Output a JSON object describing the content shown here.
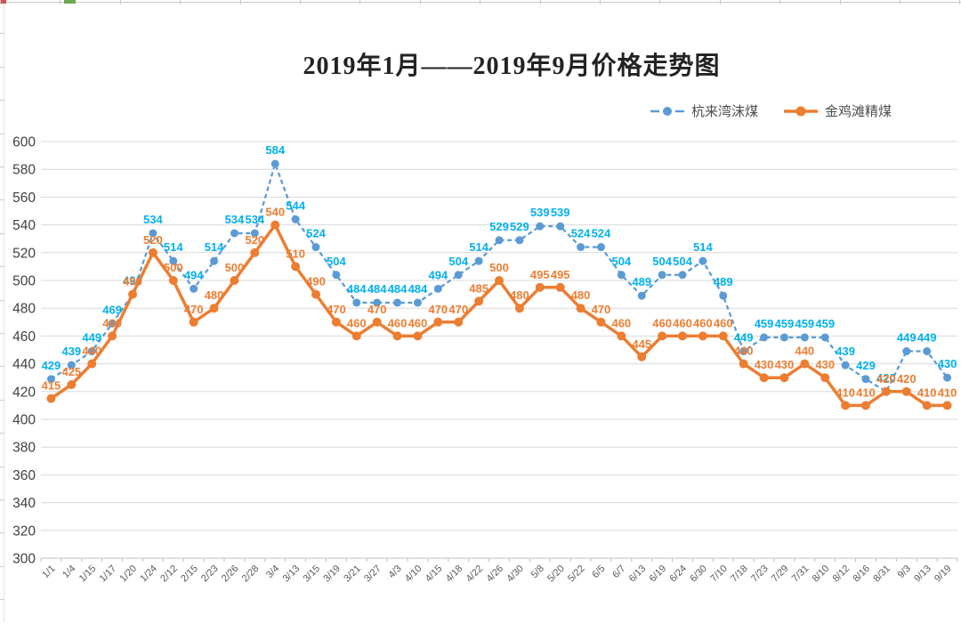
{
  "chart_data": {
    "type": "line",
    "title": "2019年1月——2019年9月价格走势图",
    "categories": [
      "1/1",
      "1/4",
      "1/15",
      "1/17",
      "1/20",
      "1/24",
      "2/12",
      "2/15",
      "2/23",
      "2/26",
      "2/28",
      "3/4",
      "3/13",
      "3/15",
      "3/19",
      "3/21",
      "3/27",
      "4/3",
      "4/10",
      "4/15",
      "4/18",
      "4/22",
      "4/26",
      "4/30",
      "5/8",
      "5/20",
      "5/22",
      "6/5",
      "6/7",
      "6/13",
      "6/19",
      "6/24",
      "6/30",
      "7/10",
      "7/18",
      "7/23",
      "7/29",
      "7/31",
      "8/10",
      "8/12",
      "8/16",
      "8/31",
      "9/3",
      "9/13",
      "9/19"
    ],
    "series": [
      {
        "name": "杭来湾沫煤",
        "style": "dashed",
        "line_color": "#5B9BD5",
        "label_color": "#00B0F0",
        "values": [
          429,
          439,
          449,
          469,
          490,
          534,
          514,
          494,
          514,
          534,
          534,
          584,
          544,
          524,
          504,
          484,
          484,
          484,
          484,
          494,
          504,
          514,
          529,
          529,
          539,
          539,
          524,
          524,
          504,
          489,
          504,
          504,
          514,
          489,
          449,
          459,
          459,
          459,
          459,
          439,
          429,
          420,
          449,
          449,
          430
        ]
      },
      {
        "name": "金鸡滩精煤",
        "style": "solid",
        "line_color": "#ED7D31",
        "label_color": "#ED7D31",
        "values": [
          415,
          425,
          440,
          460,
          490,
          520,
          500,
          470,
          480,
          500,
          520,
          540,
          510,
          490,
          470,
          460,
          470,
          460,
          460,
          470,
          470,
          485,
          500,
          480,
          495,
          495,
          480,
          470,
          460,
          445,
          460,
          460,
          460,
          460,
          440,
          430,
          430,
          440,
          430,
          410,
          410,
          420,
          420,
          410,
          410
        ]
      }
    ],
    "ylim": [
      300,
      600
    ],
    "yticks": [
      600,
      580,
      560,
      540,
      520,
      500,
      480,
      460,
      440,
      420,
      400,
      380,
      360,
      340,
      320,
      300
    ],
    "grid": true,
    "legend_position": "top-right",
    "data_labels": true,
    "gridline_color": "#D9D9D9",
    "axis_line_color": "#BFBFBF",
    "x_label_color": "#595959",
    "y_label_color": "#404040"
  }
}
